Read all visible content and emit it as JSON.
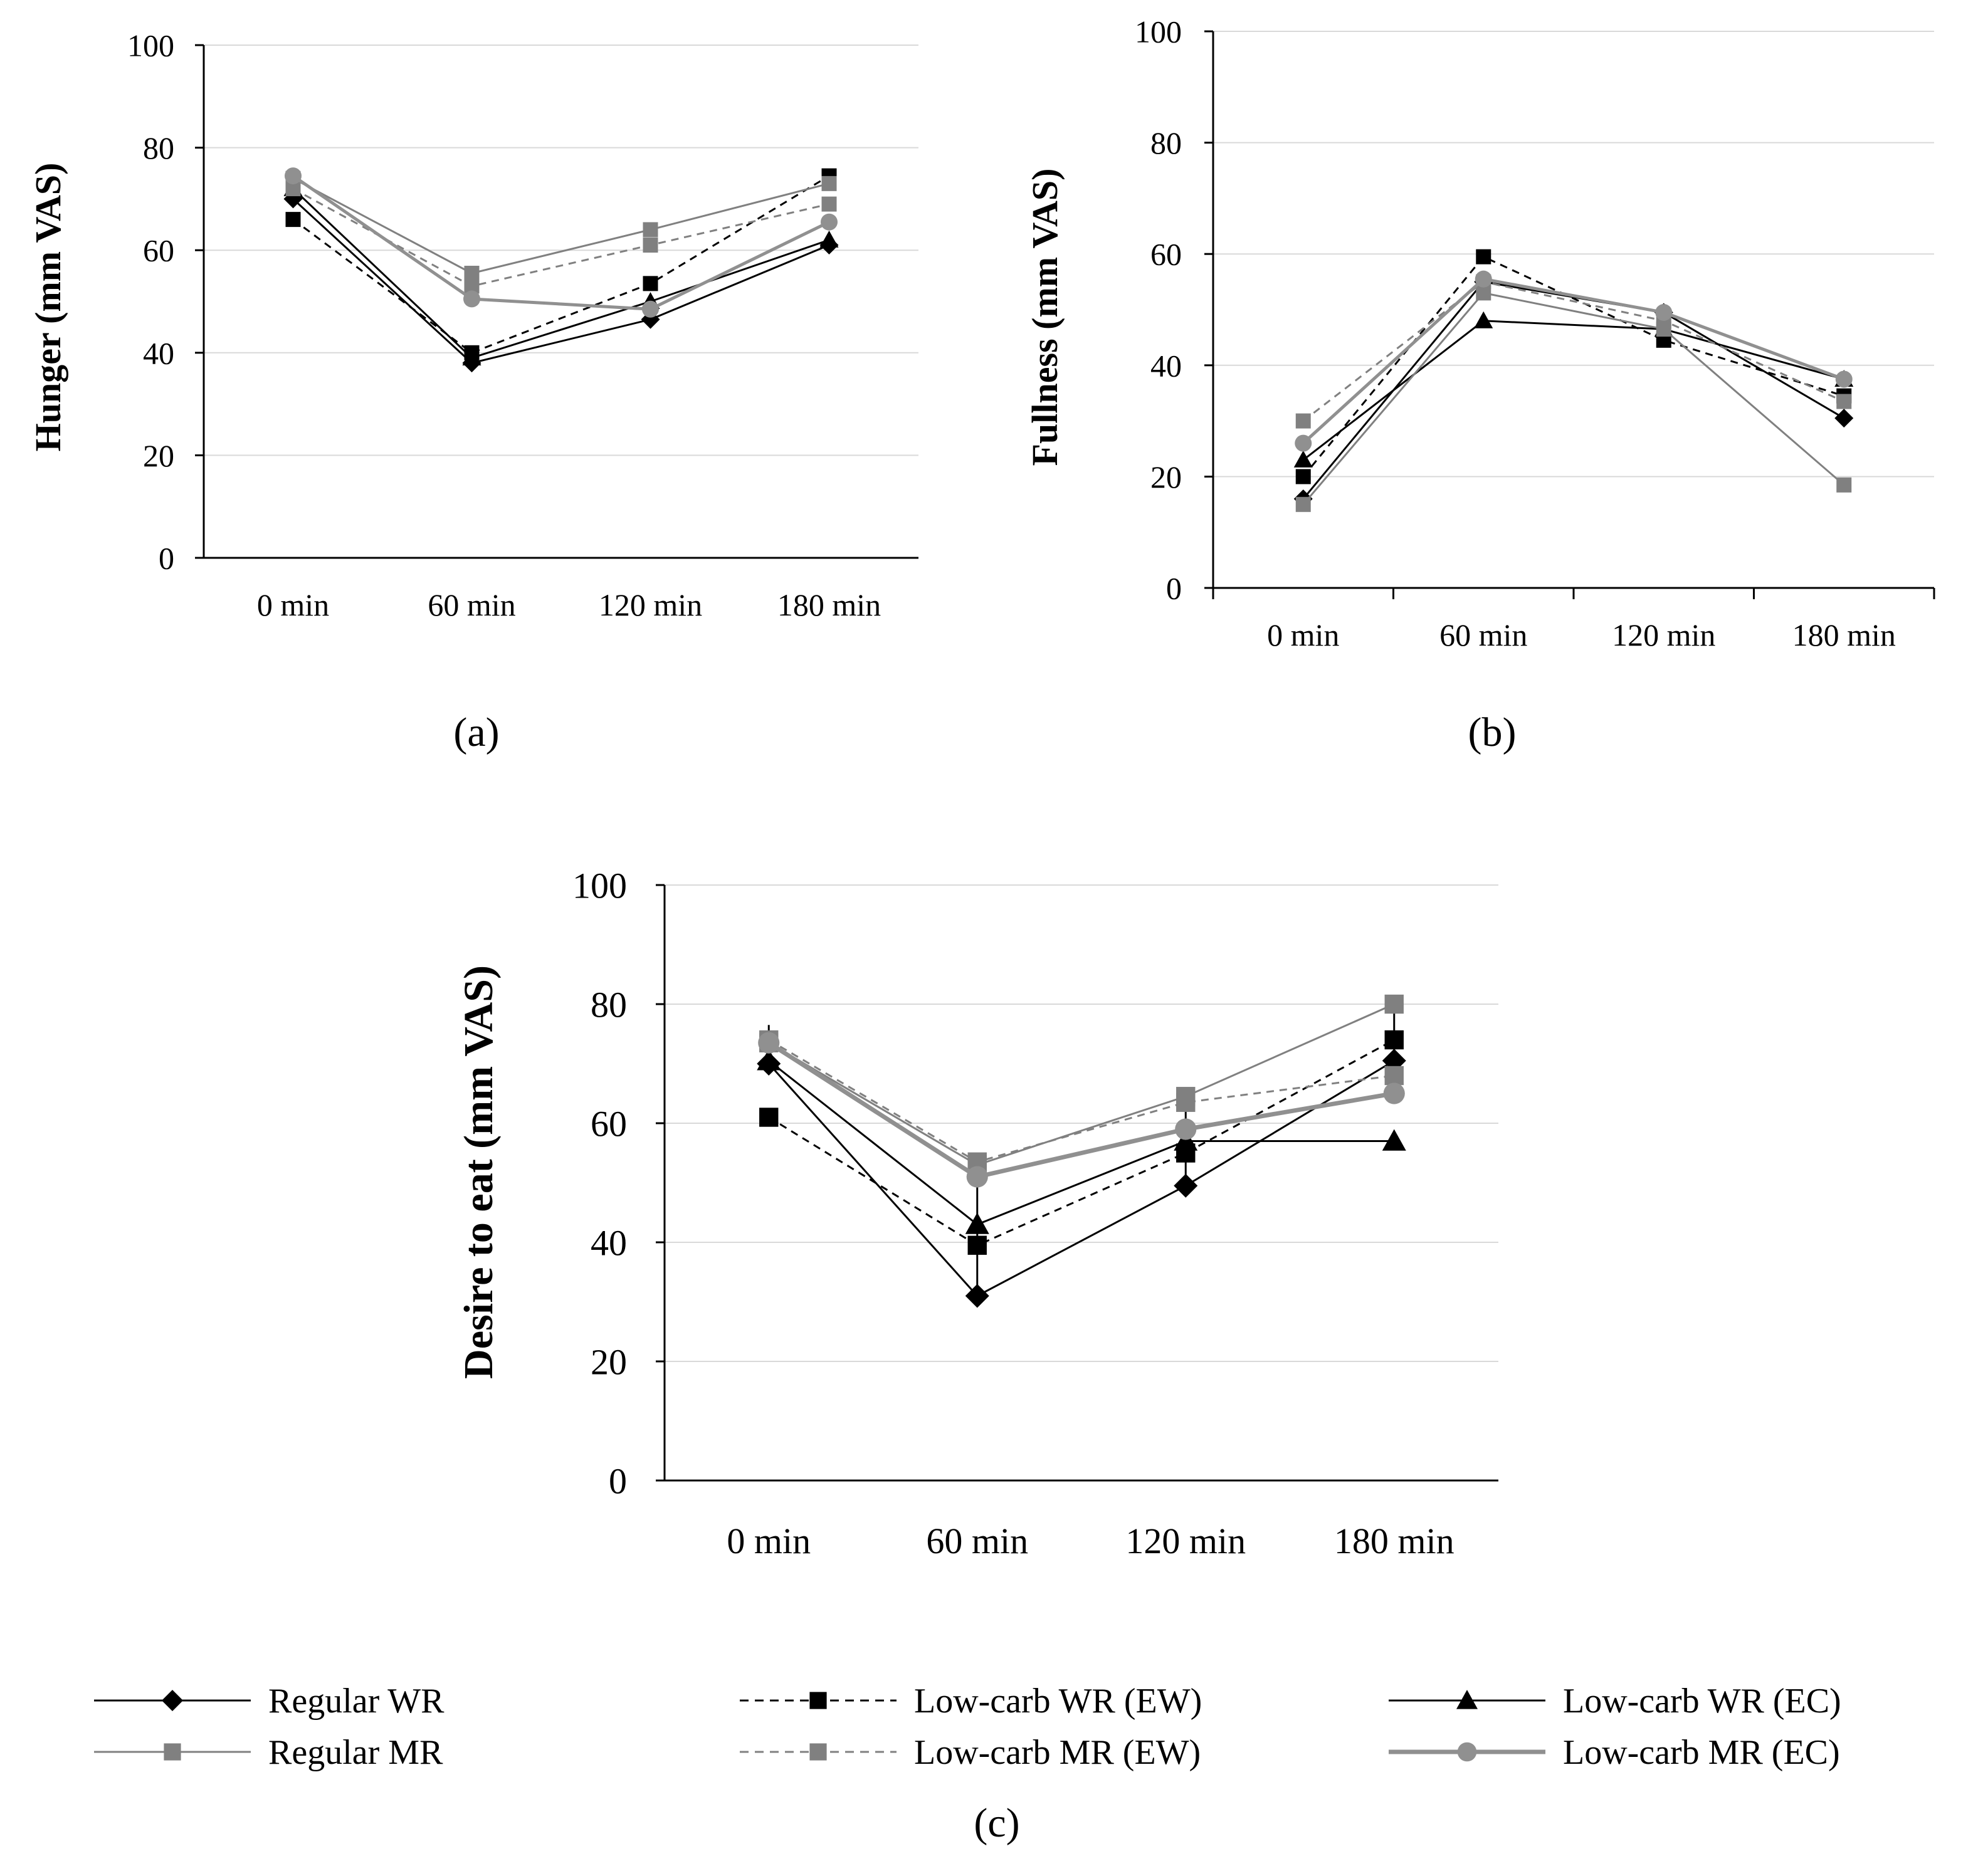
{
  "figure": {
    "panel_labels": [
      "(a)",
      "(b)",
      "(c)"
    ]
  },
  "legend": {
    "items": [
      {
        "label": "Regular WR",
        "color": "#000000",
        "dash": "solid",
        "marker": "diamond",
        "width": 3
      },
      {
        "label": "Low-carb WR (EW)",
        "color": "#000000",
        "dash": "dashed",
        "marker": "square",
        "width": 3
      },
      {
        "label": "Low-carb WR (EC)",
        "color": "#000000",
        "dash": "solid",
        "marker": "triangle",
        "width": 3
      },
      {
        "label": "Regular  MR",
        "color": "#808080",
        "dash": "solid",
        "marker": "square",
        "width": 3
      },
      {
        "label": "Low-carb MR (EW)",
        "color": "#808080",
        "dash": "dashed",
        "marker": "square",
        "width": 3
      },
      {
        "label": "Low-carb MR (EC)",
        "color": "#909090",
        "dash": "solid",
        "marker": "circle",
        "width": 7
      }
    ]
  },
  "chart_data": [
    {
      "id": "a",
      "type": "line",
      "ylabel": "Hunger (mm VAS)",
      "categories": [
        "0 min",
        "60 min",
        "120 min",
        "180 min"
      ],
      "ylim": [
        0,
        100
      ],
      "yticks": [
        "0",
        "20",
        "40",
        "60",
        "80",
        "100"
      ],
      "grid": true,
      "axis_style": "plain",
      "series": [
        {
          "name": "Regular WR",
          "values": [
            70,
            38,
            46.5,
            61
          ]
        },
        {
          "name": "Low-carb WR (EW)",
          "values": [
            66,
            40,
            53.5,
            74.5
          ]
        },
        {
          "name": "Low-carb WR (EC)",
          "values": [
            72,
            39,
            50,
            62
          ]
        },
        {
          "name": "Regular  MR",
          "values": [
            74,
            55.5,
            64,
            73
          ]
        },
        {
          "name": "Low-carb MR (EW)",
          "values": [
            72,
            53,
            61,
            69
          ]
        },
        {
          "name": "Low-carb MR (EC)",
          "values": [
            74.5,
            50.5,
            48.5,
            65.5
          ]
        }
      ]
    },
    {
      "id": "b",
      "type": "line",
      "ylabel": "Fullness (mm VAS)",
      "categories": [
        "0 min",
        "60 min",
        "120 min",
        "180 min"
      ],
      "ylim": [
        0,
        100
      ],
      "yticks": [
        "0",
        "20",
        "40",
        "60",
        "80",
        "100"
      ],
      "grid": true,
      "axis_style": "ticked",
      "series": [
        {
          "name": "Regular WR",
          "values": [
            16,
            55,
            49.5,
            30.5
          ]
        },
        {
          "name": "Low-carb WR (EW)",
          "values": [
            20,
            59.5,
            44.5,
            34.5
          ]
        },
        {
          "name": "Low-carb WR (EC)",
          "values": [
            23,
            48,
            46.5,
            37.5
          ]
        },
        {
          "name": "Regular  MR",
          "values": [
            15,
            53,
            46.5,
            18.5
          ]
        },
        {
          "name": "Low-carb MR (EW)",
          "values": [
            30,
            55,
            48,
            33.5
          ]
        },
        {
          "name": "Low-carb MR (EC)",
          "values": [
            26,
            55.5,
            49.5,
            37.5
          ]
        }
      ]
    },
    {
      "id": "c",
      "type": "line",
      "ylabel": "Desire to eat (mm VAS)",
      "categories": [
        "0 min",
        "60 min",
        "120 min",
        "180 min"
      ],
      "ylim": [
        0,
        100
      ],
      "yticks": [
        "0",
        "20",
        "40",
        "60",
        "80",
        "100"
      ],
      "grid": true,
      "axis_style": "plain",
      "series": [
        {
          "name": "Regular WR",
          "values": [
            70,
            31,
            49.5,
            70.5
          ],
          "errors": [
            3,
            11,
            5,
            10
          ]
        },
        {
          "name": "Low-carb WR (EW)",
          "values": [
            61,
            39.5,
            55,
            74
          ]
        },
        {
          "name": "Low-carb WR (EC)",
          "values": [
            70.5,
            43,
            57,
            57
          ],
          "errors": [
            6,
            10,
            6,
            0
          ]
        },
        {
          "name": "Regular  MR",
          "values": [
            73.5,
            53,
            64.5,
            80
          ]
        },
        {
          "name": "Low-carb MR (EW)",
          "values": [
            74,
            53.5,
            63.5,
            68
          ]
        },
        {
          "name": "Low-carb MR (EC)",
          "values": [
            73.5,
            51,
            59,
            65
          ]
        }
      ]
    }
  ]
}
